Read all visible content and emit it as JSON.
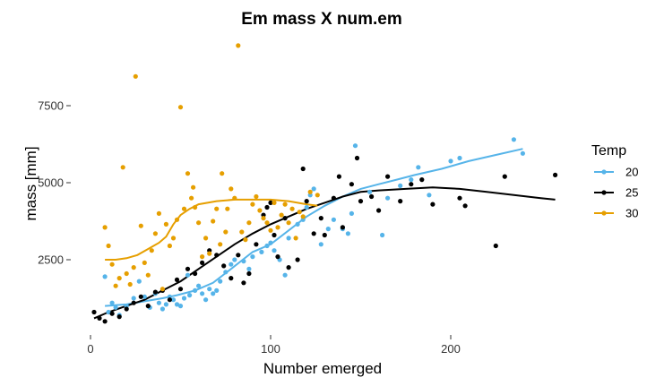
{
  "chart_data": {
    "type": "scatter",
    "title": "Em mass X num.em",
    "xlabel": "Number emerged",
    "ylabel": "mass [mm]",
    "xlim": [
      -5,
      265
    ],
    "ylim": [
      0,
      10000
    ],
    "x_ticks": [
      0,
      100,
      200
    ],
    "y_ticks": [
      2500,
      5000,
      7500
    ],
    "y_tick_labels": [
      "2500",
      "5000",
      "7500"
    ],
    "grid": false,
    "legend": {
      "title": "Temp",
      "position": "right"
    },
    "series": [
      {
        "name": "20",
        "color": "#56B4E9",
        "points": [
          [
            8,
            1950
          ],
          [
            10,
            800
          ],
          [
            12,
            1100
          ],
          [
            14,
            950
          ],
          [
            16,
            700
          ],
          [
            20,
            1000
          ],
          [
            24,
            1250
          ],
          [
            27,
            1800
          ],
          [
            30,
            1300
          ],
          [
            33,
            950
          ],
          [
            36,
            1400
          ],
          [
            38,
            1100
          ],
          [
            40,
            900
          ],
          [
            42,
            1050
          ],
          [
            44,
            1300
          ],
          [
            46,
            1200
          ],
          [
            48,
            1050
          ],
          [
            50,
            1000
          ],
          [
            52,
            1250
          ],
          [
            54,
            2000
          ],
          [
            55,
            1350
          ],
          [
            58,
            1500
          ],
          [
            60,
            1650
          ],
          [
            62,
            1400
          ],
          [
            64,
            1200
          ],
          [
            66,
            1550
          ],
          [
            68,
            1400
          ],
          [
            70,
            1500
          ],
          [
            72,
            1800
          ],
          [
            75,
            2100
          ],
          [
            78,
            2350
          ],
          [
            80,
            2500
          ],
          [
            85,
            2450
          ],
          [
            88,
            2200
          ],
          [
            90,
            2600
          ],
          [
            95,
            2750
          ],
          [
            98,
            2950
          ],
          [
            100,
            3050
          ],
          [
            102,
            2800
          ],
          [
            105,
            2500
          ],
          [
            108,
            2000
          ],
          [
            110,
            3200
          ],
          [
            115,
            3650
          ],
          [
            118,
            3800
          ],
          [
            120,
            4200
          ],
          [
            122,
            4600
          ],
          [
            124,
            4800
          ],
          [
            128,
            3000
          ],
          [
            132,
            3500
          ],
          [
            135,
            3800
          ],
          [
            140,
            3500
          ],
          [
            143,
            3350
          ],
          [
            145,
            4000
          ],
          [
            147,
            6200
          ],
          [
            155,
            4700
          ],
          [
            162,
            3300
          ],
          [
            165,
            4500
          ],
          [
            172,
            4900
          ],
          [
            178,
            5100
          ],
          [
            182,
            5500
          ],
          [
            188,
            4600
          ],
          [
            200,
            5700
          ],
          [
            205,
            5800
          ],
          [
            235,
            6400
          ],
          [
            240,
            5950
          ]
        ]
      },
      {
        "name": "25",
        "color": "#000000",
        "points": [
          [
            2,
            800
          ],
          [
            5,
            600
          ],
          [
            8,
            500
          ],
          [
            12,
            750
          ],
          [
            16,
            650
          ],
          [
            20,
            900
          ],
          [
            24,
            1100
          ],
          [
            28,
            1300
          ],
          [
            32,
            1000
          ],
          [
            36,
            1450
          ],
          [
            40,
            1500
          ],
          [
            44,
            1200
          ],
          [
            48,
            1850
          ],
          [
            50,
            1550
          ],
          [
            54,
            2200
          ],
          [
            58,
            2050
          ],
          [
            62,
            2400
          ],
          [
            66,
            2800
          ],
          [
            70,
            2650
          ],
          [
            74,
            2300
          ],
          [
            78,
            1900
          ],
          [
            82,
            2650
          ],
          [
            85,
            1750
          ],
          [
            88,
            2050
          ],
          [
            92,
            3000
          ],
          [
            96,
            3950
          ],
          [
            98,
            4200
          ],
          [
            100,
            4350
          ],
          [
            102,
            3300
          ],
          [
            104,
            2600
          ],
          [
            108,
            3850
          ],
          [
            110,
            2250
          ],
          [
            115,
            2500
          ],
          [
            118,
            5450
          ],
          [
            120,
            4400
          ],
          [
            124,
            3350
          ],
          [
            128,
            3850
          ],
          [
            130,
            3300
          ],
          [
            135,
            4500
          ],
          [
            138,
            5200
          ],
          [
            140,
            3550
          ],
          [
            145,
            4950
          ],
          [
            148,
            5800
          ],
          [
            150,
            4400
          ],
          [
            156,
            4550
          ],
          [
            160,
            4100
          ],
          [
            165,
            5200
          ],
          [
            172,
            4400
          ],
          [
            178,
            4950
          ],
          [
            184,
            5100
          ],
          [
            190,
            4300
          ],
          [
            205,
            4500
          ],
          [
            208,
            4250
          ],
          [
            225,
            2950
          ],
          [
            230,
            5200
          ],
          [
            258,
            5250
          ]
        ]
      },
      {
        "name": "30",
        "color": "#E69F00",
        "points": [
          [
            8,
            3550
          ],
          [
            10,
            2950
          ],
          [
            12,
            2350
          ],
          [
            14,
            1650
          ],
          [
            16,
            1900
          ],
          [
            18,
            5500
          ],
          [
            20,
            2050
          ],
          [
            22,
            1700
          ],
          [
            24,
            2250
          ],
          [
            25,
            8450
          ],
          [
            28,
            3600
          ],
          [
            30,
            2400
          ],
          [
            32,
            2000
          ],
          [
            34,
            2800
          ],
          [
            36,
            3350
          ],
          [
            38,
            4000
          ],
          [
            40,
            1550
          ],
          [
            42,
            3650
          ],
          [
            44,
            2950
          ],
          [
            46,
            3200
          ],
          [
            48,
            3800
          ],
          [
            50,
            7450
          ],
          [
            52,
            4150
          ],
          [
            54,
            5300
          ],
          [
            56,
            4500
          ],
          [
            57,
            4850
          ],
          [
            58,
            4200
          ],
          [
            60,
            3700
          ],
          [
            62,
            2600
          ],
          [
            64,
            3200
          ],
          [
            66,
            2700
          ],
          [
            68,
            3750
          ],
          [
            70,
            4150
          ],
          [
            72,
            3000
          ],
          [
            73,
            5300
          ],
          [
            75,
            3400
          ],
          [
            76,
            4150
          ],
          [
            78,
            4800
          ],
          [
            80,
            4500
          ],
          [
            82,
            9450
          ],
          [
            84,
            3400
          ],
          [
            86,
            3150
          ],
          [
            88,
            3700
          ],
          [
            90,
            4300
          ],
          [
            92,
            4550
          ],
          [
            94,
            4100
          ],
          [
            96,
            3850
          ],
          [
            98,
            3700
          ],
          [
            100,
            3450
          ],
          [
            102,
            4350
          ],
          [
            104,
            3550
          ],
          [
            106,
            3950
          ],
          [
            108,
            4300
          ],
          [
            110,
            3700
          ],
          [
            112,
            4150
          ],
          [
            114,
            3200
          ],
          [
            116,
            4050
          ],
          [
            118,
            3900
          ],
          [
            122,
            4700
          ],
          [
            126,
            4600
          ]
        ]
      }
    ],
    "smooth_lines": [
      {
        "name": "20",
        "color": "#56B4E9",
        "points": [
          [
            8,
            1000
          ],
          [
            20,
            1050
          ],
          [
            30,
            1150
          ],
          [
            40,
            1250
          ],
          [
            48,
            1350
          ],
          [
            58,
            1500
          ],
          [
            68,
            1750
          ],
          [
            78,
            2200
          ],
          [
            90,
            2750
          ],
          [
            100,
            3000
          ],
          [
            110,
            3450
          ],
          [
            120,
            3900
          ],
          [
            130,
            4250
          ],
          [
            140,
            4550
          ],
          [
            150,
            4800
          ],
          [
            160,
            4950
          ],
          [
            170,
            5100
          ],
          [
            180,
            5250
          ],
          [
            195,
            5450
          ],
          [
            210,
            5700
          ],
          [
            225,
            5900
          ],
          [
            240,
            6100
          ]
        ]
      },
      {
        "name": "25",
        "color": "#000000",
        "points": [
          [
            2,
            600
          ],
          [
            10,
            800
          ],
          [
            20,
            1000
          ],
          [
            30,
            1200
          ],
          [
            40,
            1500
          ],
          [
            50,
            1800
          ],
          [
            60,
            2200
          ],
          [
            70,
            2600
          ],
          [
            80,
            3000
          ],
          [
            90,
            3350
          ],
          [
            100,
            3650
          ],
          [
            110,
            3900
          ],
          [
            120,
            4150
          ],
          [
            130,
            4350
          ],
          [
            140,
            4550
          ],
          [
            150,
            4700
          ],
          [
            160,
            4750
          ],
          [
            175,
            4800
          ],
          [
            190,
            4850
          ],
          [
            205,
            4800
          ],
          [
            220,
            4700
          ],
          [
            235,
            4600
          ],
          [
            250,
            4500
          ],
          [
            258,
            4450
          ]
        ]
      },
      {
        "name": "30",
        "color": "#E69F00",
        "points": [
          [
            8,
            2500
          ],
          [
            14,
            2500
          ],
          [
            20,
            2550
          ],
          [
            26,
            2650
          ],
          [
            32,
            2850
          ],
          [
            38,
            3050
          ],
          [
            42,
            3250
          ],
          [
            46,
            3650
          ],
          [
            50,
            3950
          ],
          [
            55,
            4150
          ],
          [
            60,
            4300
          ],
          [
            70,
            4400
          ],
          [
            80,
            4450
          ],
          [
            90,
            4450
          ],
          [
            100,
            4450
          ],
          [
            110,
            4400
          ],
          [
            120,
            4300
          ],
          [
            126,
            4250
          ]
        ]
      }
    ]
  }
}
